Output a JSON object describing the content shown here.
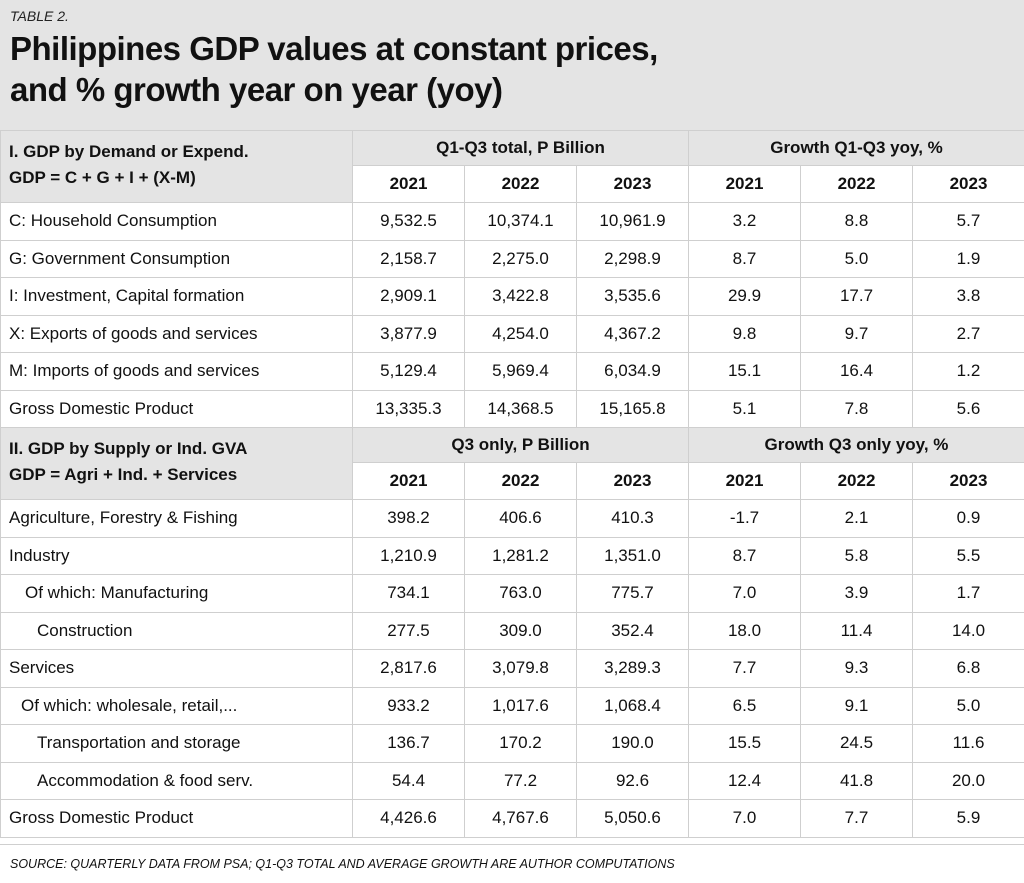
{
  "header": {
    "label": "TABLE 2.",
    "title": [
      "Philippines GDP values at constant prices,",
      "and % growth year on year (yoy)"
    ]
  },
  "sections": [
    {
      "label": [
        "I. GDP by Demand or Expend.",
        "GDP = C + G + I + (X-M)"
      ],
      "groups": [
        "Q1-Q3 total, P Billion",
        "Growth Q1-Q3 yoy, %"
      ],
      "years": [
        "2021",
        "2022",
        "2023",
        "2021",
        "2022",
        "2023"
      ],
      "rows": [
        [
          "C: Household Consumption",
          "9,532.5",
          "10,374.1",
          "10,961.9",
          "3.2",
          "8.8",
          "5.7"
        ],
        [
          "G: Government Consumption",
          "2,158.7",
          "2,275.0",
          "2,298.9",
          "8.7",
          "5.0",
          "1.9"
        ],
        [
          "I: Investment, Capital formation",
          "2,909.1",
          "3,422.8",
          "3,535.6",
          "29.9",
          "17.7",
          "3.8"
        ],
        [
          "X: Exports of goods and services",
          "3,877.9",
          "4,254.0",
          "4,367.2",
          "9.8",
          "9.7",
          "2.7"
        ],
        [
          "M: Imports of goods and services",
          "5,129.4",
          "5,969.4",
          "6,034.9",
          "15.1",
          "16.4",
          "1.2"
        ],
        [
          "Gross Domestic Product",
          "13,335.3",
          "14,368.5",
          "15,165.8",
          "5.1",
          "7.8",
          "5.6"
        ]
      ]
    },
    {
      "label": [
        "II. GDP by Supply or Ind. GVA",
        "GDP = Agri + Ind. + Services"
      ],
      "groups": [
        "Q3 only, P Billion",
        "Growth Q3 only yoy, %"
      ],
      "years": [
        "2021",
        "2022",
        "2023",
        "2021",
        "2022",
        "2023"
      ],
      "rows": [
        [
          "Agriculture, Forestry & Fishing",
          "398.2",
          "406.6",
          "410.3",
          "-1.7",
          "2.1",
          "0.9"
        ],
        [
          "Industry",
          "1,210.9",
          "1,281.2",
          "1,351.0",
          "8.7",
          "5.8",
          "5.5"
        ],
        [
          "Of which: Manufacturing",
          "734.1",
          "763.0",
          "775.7",
          "7.0",
          "3.9",
          "1.7"
        ],
        [
          "Construction",
          "277.5",
          "309.0",
          "352.4",
          "18.0",
          "11.4",
          "14.0"
        ],
        [
          "Services",
          "2,817.6",
          "3,079.8",
          "3,289.3",
          "7.7",
          "9.3",
          "6.8"
        ],
        [
          "Of which: wholesale, retail,...",
          "933.2",
          "1,017.6",
          "1,068.4",
          "6.5",
          "9.1",
          "5.0"
        ],
        [
          "Transportation and storage",
          "136.7",
          "170.2",
          "190.0",
          "15.5",
          "24.5",
          "11.6"
        ],
        [
          "Accommodation & food serv.",
          "54.4",
          "77.2",
          "92.6",
          "12.4",
          "41.8",
          "20.0"
        ],
        [
          "Gross Domestic Product",
          "4,426.6",
          "4,767.6",
          "5,050.6",
          "7.0",
          "7.7",
          "5.9"
        ]
      ]
    }
  ],
  "source": "SOURCE: QUARTERLY DATA FROM PSA; Q1-Q3 TOTAL AND AVERAGE GROWTH ARE AUTHOR COMPUTATIONS"
}
